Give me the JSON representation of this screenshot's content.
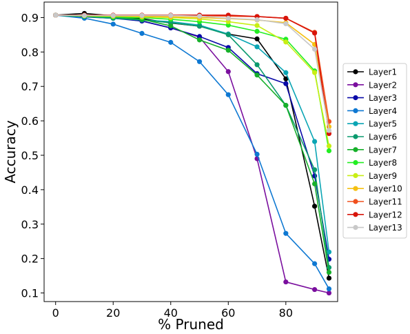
{
  "chart_data": {
    "type": "line",
    "title": "",
    "xlabel": "% Pruned",
    "ylabel": "Accuracy",
    "xlim": [
      -4,
      98
    ],
    "ylim": [
      0.075,
      0.945
    ],
    "xticks": [
      0,
      20,
      40,
      60,
      80
    ],
    "yticks": [
      0.1,
      0.2,
      0.3,
      0.4,
      0.5,
      0.6,
      0.7,
      0.8,
      0.9
    ],
    "grid": false,
    "legend_position": "right, outside plot",
    "x": [
      0,
      10,
      20,
      30,
      40,
      50,
      60,
      70,
      80,
      90,
      95
    ],
    "series": [
      {
        "name": "Layer1",
        "color": "#000000",
        "values": [
          0.907,
          0.912,
          0.905,
          0.897,
          0.884,
          0.875,
          0.852,
          0.838,
          0.722,
          0.352,
          0.143
        ]
      },
      {
        "name": "Layer2",
        "color": "#7a0f9e",
        "values": [
          0.907,
          0.905,
          0.9,
          0.89,
          0.87,
          0.843,
          0.743,
          0.49,
          0.132,
          0.11,
          0.1
        ]
      },
      {
        "name": "Layer3",
        "color": "#0a0aa8",
        "values": [
          0.907,
          0.902,
          0.898,
          0.89,
          0.87,
          0.845,
          0.813,
          0.737,
          0.708,
          0.44,
          0.198
        ]
      },
      {
        "name": "Layer4",
        "color": "#0e78d2",
        "values": [
          0.907,
          0.898,
          0.881,
          0.854,
          0.828,
          0.772,
          0.676,
          0.503,
          0.273,
          0.185,
          0.112
        ]
      },
      {
        "name": "Layer5",
        "color": "#0aa5b4",
        "values": [
          0.907,
          0.903,
          0.898,
          0.893,
          0.888,
          0.878,
          0.852,
          0.815,
          0.74,
          0.54,
          0.219
        ]
      },
      {
        "name": "Layer6",
        "color": "#0a9a6e",
        "values": [
          0.907,
          0.903,
          0.898,
          0.893,
          0.885,
          0.875,
          0.85,
          0.763,
          0.645,
          0.458,
          0.174
        ]
      },
      {
        "name": "Layer7",
        "color": "#16b02a",
        "values": [
          0.907,
          0.904,
          0.902,
          0.895,
          0.876,
          0.835,
          0.805,
          0.733,
          0.645,
          0.417,
          0.16
        ]
      },
      {
        "name": "Layer8",
        "color": "#22ee22",
        "values": [
          0.907,
          0.905,
          0.902,
          0.9,
          0.895,
          0.888,
          0.878,
          0.86,
          0.837,
          0.745,
          0.513
        ]
      },
      {
        "name": "Layer9",
        "color": "#c8ee14",
        "values": [
          0.907,
          0.905,
          0.904,
          0.902,
          0.9,
          0.896,
          0.888,
          0.877,
          0.829,
          0.74,
          0.527
        ]
      },
      {
        "name": "Layer10",
        "color": "#f5c012",
        "values": [
          0.907,
          0.906,
          0.905,
          0.904,
          0.902,
          0.9,
          0.897,
          0.893,
          0.885,
          0.822,
          0.583
        ]
      },
      {
        "name": "Layer11",
        "color": "#f0501e",
        "values": [
          0.907,
          0.907,
          0.906,
          0.906,
          0.906,
          0.906,
          0.904,
          0.903,
          0.898,
          0.857,
          0.598
        ]
      },
      {
        "name": "Layer12",
        "color": "#d8140a",
        "values": [
          0.907,
          0.907,
          0.907,
          0.907,
          0.907,
          0.907,
          0.907,
          0.903,
          0.898,
          0.855,
          0.563
        ]
      },
      {
        "name": "Layer13",
        "color": "#c8c8c8",
        "values": [
          0.907,
          0.906,
          0.906,
          0.906,
          0.906,
          0.904,
          0.898,
          0.894,
          0.882,
          0.808,
          0.572
        ]
      }
    ]
  }
}
